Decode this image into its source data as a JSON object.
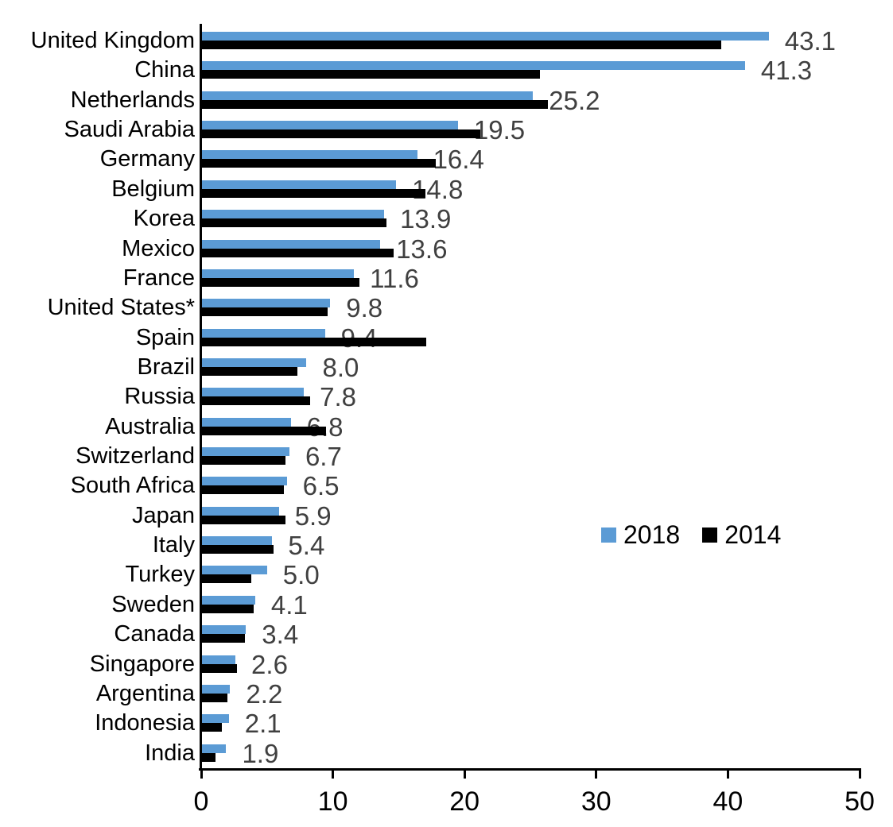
{
  "chart_data": {
    "type": "bar",
    "orientation": "horizontal",
    "title": "",
    "xlabel": "",
    "ylabel": "",
    "xlim": [
      0,
      50
    ],
    "x_ticks": [
      "0",
      "10",
      "20",
      "30",
      "40",
      "50"
    ],
    "grid": false,
    "legend_position": "middle-right",
    "categories": [
      "United Kingdom",
      "China",
      "Netherlands",
      "Saudi Arabia",
      "Germany",
      "Belgium",
      "Korea",
      "Mexico",
      "France",
      "United States*",
      "Spain",
      "Brazil",
      "Russia",
      "Australia",
      "Switzerland",
      "South Africa",
      "Japan",
      "Italy",
      "Turkey",
      "Sweden",
      "Canada",
      "Singapore",
      "Argentina",
      "Indonesia",
      "India"
    ],
    "series": [
      {
        "name": "2018",
        "color": "#5B9BD5",
        "values": [
          43.1,
          41.3,
          25.2,
          19.5,
          16.4,
          14.8,
          13.9,
          13.6,
          11.6,
          9.8,
          9.4,
          8.0,
          7.8,
          6.8,
          6.7,
          6.5,
          5.9,
          5.4,
          5.0,
          4.1,
          3.4,
          2.6,
          2.2,
          2.1,
          1.9
        ]
      },
      {
        "name": "2014",
        "color": "#000000",
        "values": [
          39.5,
          25.7,
          26.3,
          21.2,
          17.8,
          17.0,
          14.1,
          14.6,
          12.0,
          9.6,
          17.1,
          7.3,
          8.3,
          9.5,
          6.4,
          6.3,
          6.4,
          5.5,
          3.8,
          4.0,
          3.3,
          2.7,
          2.0,
          1.6,
          1.1
        ]
      }
    ],
    "data_labels": {
      "series": "2018",
      "values": [
        "43.1",
        "41.3",
        "25.2",
        "19.5",
        "16.4",
        "14.8",
        "13.9",
        "13.6",
        "11.6",
        "9.8",
        "9.4",
        "8.0",
        "7.8",
        "6.8",
        "6.7",
        "6.5",
        "5.9",
        "5.4",
        "5.0",
        "4.1",
        "3.4",
        "2.6",
        "2.2",
        "2.1",
        "1.9"
      ]
    }
  },
  "legend": {
    "items": [
      {
        "label": "2018",
        "color": "#5B9BD5"
      },
      {
        "label": "2014",
        "color": "#000000"
      }
    ]
  },
  "colors": {
    "bar_2018": "#5B9BD5",
    "bar_2014": "#000000",
    "data_label": "#404040",
    "axis": "#000000",
    "text": "#000000",
    "background": "#FFFFFF"
  }
}
